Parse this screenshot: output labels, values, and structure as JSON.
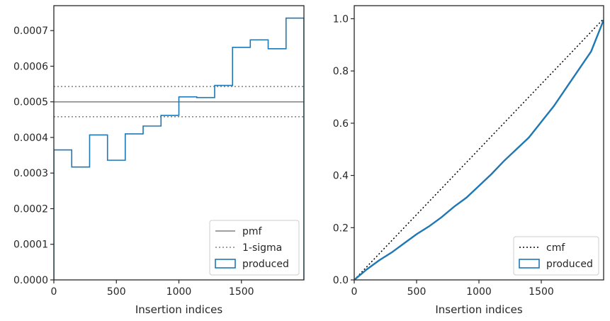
{
  "chart_data": [
    {
      "type": "step",
      "xlabel": "Insertion indices",
      "ylabel": "",
      "xlim": [
        0,
        2000
      ],
      "ylim": [
        0,
        0.00077
      ],
      "xticks": [
        "0",
        "500",
        "1000",
        "1500"
      ],
      "xtick_values": [
        0,
        500,
        1000,
        1500
      ],
      "yticks": [
        "0.0000",
        "0.0001",
        "0.0002",
        "0.0003",
        "0.0004",
        "0.0005",
        "0.0006",
        "0.0007"
      ],
      "ytick_values": [
        0,
        0.0001,
        0.0002,
        0.0003,
        0.0004,
        0.0005,
        0.0006,
        0.0007
      ],
      "bin_edges": [
        0,
        143,
        286,
        429,
        571,
        714,
        857,
        1000,
        1143,
        1286,
        1429,
        1571,
        1714,
        1857,
        2000
      ],
      "series": [
        {
          "name": "produced",
          "color": "#1f77b4",
          "values": [
            0.000365,
            0.000317,
            0.000407,
            0.000336,
            0.00041,
            0.000432,
            0.000462,
            0.000514,
            0.000512,
            0.000546,
            0.000653,
            0.000674,
            0.000649,
            0.000735
          ]
        }
      ],
      "reference_lines": [
        {
          "name": "pmf",
          "y": 0.0005,
          "color": "#808080",
          "style": "solid"
        },
        {
          "name": "1-sigma",
          "y": [
            0.000458,
            0.000543
          ],
          "color": "#808080",
          "style": "dotted"
        }
      ],
      "legend": [
        "pmf",
        "1-sigma",
        "produced"
      ],
      "legend_location": "lower-right",
      "grid": false
    },
    {
      "type": "line",
      "xlabel": "Insertion indices",
      "ylabel": "",
      "xlim": [
        0,
        2000
      ],
      "ylim": [
        0,
        1.05
      ],
      "xticks": [
        "0",
        "500",
        "1000",
        "1500"
      ],
      "xtick_values": [
        0,
        500,
        1000,
        1500
      ],
      "yticks": [
        "0.0",
        "0.2",
        "0.4",
        "0.6",
        "0.8",
        "1.0"
      ],
      "ytick_values": [
        0,
        0.2,
        0.4,
        0.6,
        0.8,
        1.0
      ],
      "series": [
        {
          "name": "cmf",
          "color": "#000000",
          "style": "dotted",
          "x": [
            0,
            2000
          ],
          "y": [
            0,
            1.0
          ]
        },
        {
          "name": "produced",
          "color": "#1f77b4",
          "style": "solid",
          "x": [
            0,
            100,
            200,
            300,
            400,
            500,
            600,
            700,
            800,
            900,
            1000,
            1100,
            1200,
            1300,
            1400,
            1500,
            1600,
            1700,
            1800,
            1900,
            2000
          ],
          "y": [
            0,
            0.04,
            0.075,
            0.105,
            0.14,
            0.175,
            0.205,
            0.24,
            0.28,
            0.315,
            0.36,
            0.405,
            0.455,
            0.5,
            0.545,
            0.605,
            0.665,
            0.735,
            0.805,
            0.875,
            0.995
          ]
        }
      ],
      "legend": [
        "cmf",
        "produced"
      ],
      "legend_location": "lower-right",
      "grid": false
    }
  ]
}
